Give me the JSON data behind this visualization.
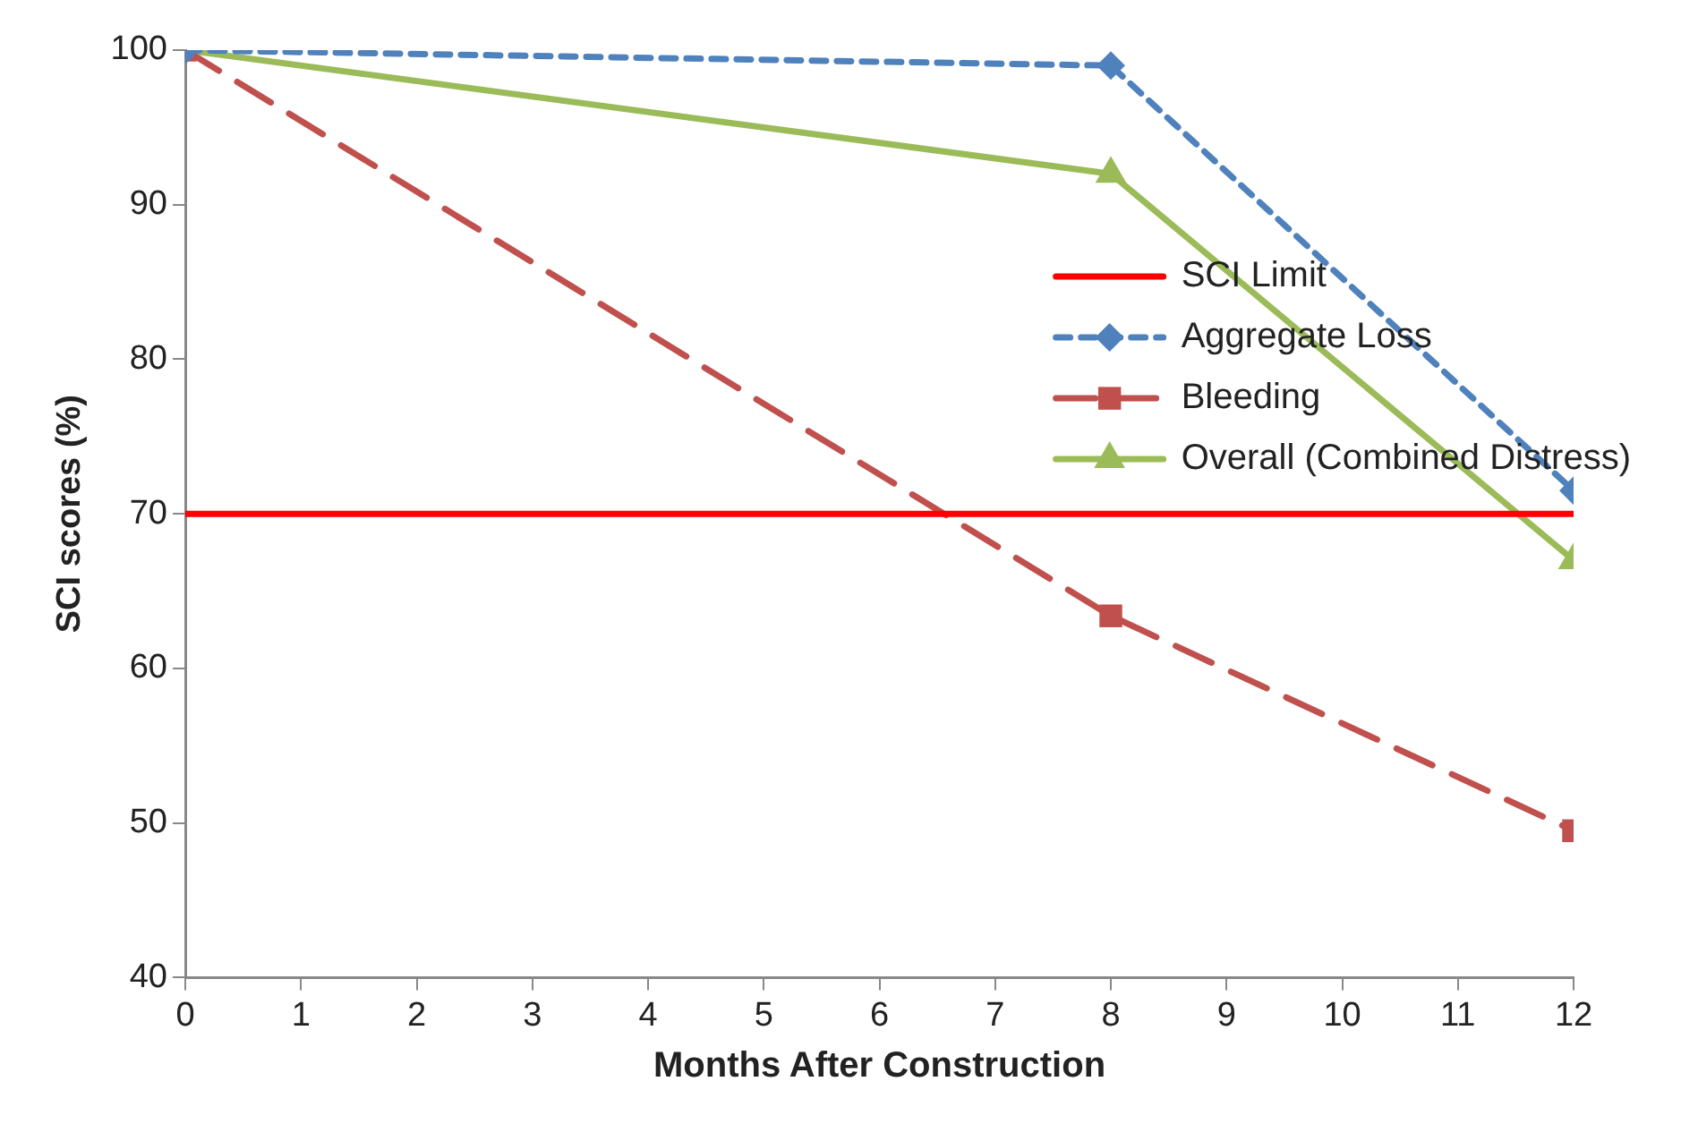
{
  "chart_data": {
    "type": "line",
    "xlabel": "Months After Construction",
    "ylabel": "SCI scores (%)",
    "xlim": [
      0,
      12
    ],
    "xticks": [
      0,
      1,
      2,
      3,
      4,
      5,
      6,
      7,
      8,
      9,
      10,
      11,
      12
    ],
    "ylim": [
      40,
      100
    ],
    "yticks": [
      40,
      50,
      60,
      70,
      80,
      90,
      100
    ],
    "grid": false,
    "legend": "right",
    "series": [
      {
        "name": "SCI Limit",
        "color": "#ff0000",
        "x": [
          0,
          12
        ],
        "values": [
          70,
          70
        ],
        "marker": "none",
        "line_style": "solid"
      },
      {
        "name": "Aggregate Loss",
        "color": "#4f81bd",
        "x": [
          0,
          8,
          12
        ],
        "values": [
          100,
          99,
          71.5
        ],
        "marker": "diamond",
        "line_style": "dotted"
      },
      {
        "name": "Bleeding",
        "color": "#c0504d",
        "x": [
          0,
          8,
          12
        ],
        "values": [
          100,
          63.4,
          49.5
        ],
        "marker": "square",
        "line_style": "dashed"
      },
      {
        "name": "Overall (Combined Distress)",
        "color": "#9bbb59",
        "x": [
          0,
          8,
          12
        ],
        "values": [
          100,
          92,
          67
        ],
        "marker": "triangle",
        "line_style": "solid"
      }
    ]
  }
}
